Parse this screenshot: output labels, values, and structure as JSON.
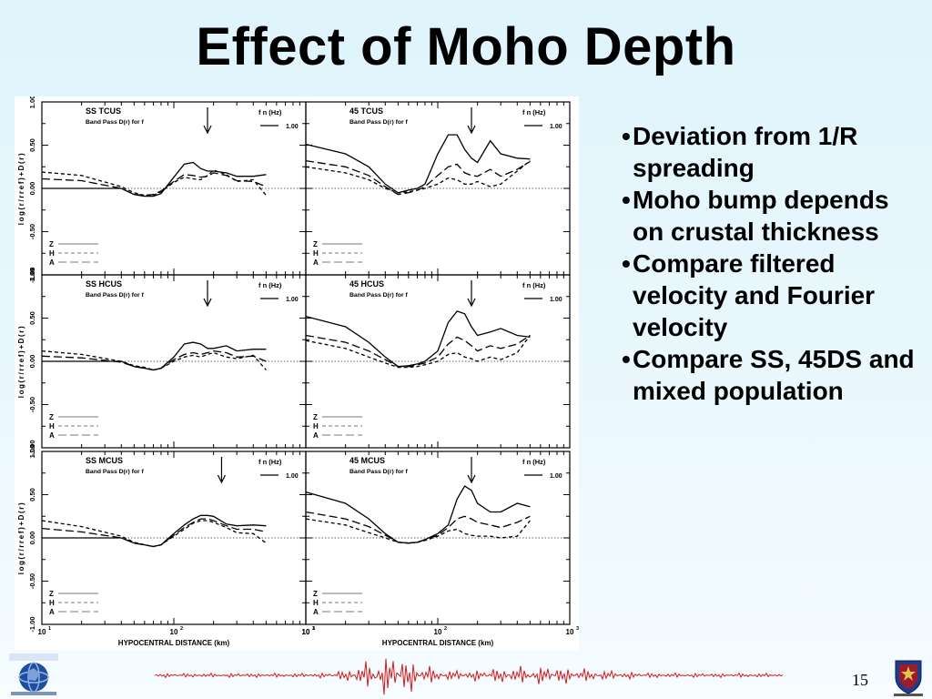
{
  "slide": {
    "title": "Effect of Moho Depth",
    "bullets": [
      "Deviation from 1/R spreading",
      "Moho bump depends on crustal thickness",
      "Compare filtered velocity and Fourier velocity",
      "Compare SS, 45DS and mixed population"
    ],
    "page_number": "15"
  },
  "logos": {
    "left": "earth-globe-logo",
    "right": "university-crest-logo"
  },
  "chart_data": [
    {
      "type": "line",
      "panel": "SS TCUS",
      "title": "SS TCUS",
      "subtitle": "Band Pass D(r) for f",
      "x_scale": "log",
      "xlim": [
        10,
        1000
      ],
      "ylim": [
        -1.0,
        1.0
      ],
      "ylabel": "log(r/rref)+D(r)",
      "xlabel": "",
      "legend_title": "f n (Hz)",
      "legend_entry": "1.00",
      "arrow_x": 180,
      "x": [
        10,
        20,
        40,
        50,
        60,
        70,
        80,
        100,
        120,
        140,
        160,
        180,
        200,
        250,
        300,
        400,
        500
      ],
      "series": [
        {
          "name": "Z",
          "style": "solid",
          "values": [
            null,
            null,
            0.0,
            -0.07,
            -0.09,
            -0.09,
            -0.06,
            0.13,
            0.28,
            0.3,
            0.23,
            0.2,
            0.2,
            0.18,
            0.14,
            0.14,
            0.16
          ]
        },
        {
          "name": "H",
          "style": "dashed",
          "values": [
            0.19,
            0.15,
            0.02,
            -0.05,
            -0.08,
            -0.08,
            -0.04,
            0.07,
            0.13,
            0.11,
            0.1,
            0.15,
            0.21,
            0.16,
            0.08,
            0.1,
            -0.08
          ]
        },
        {
          "name": "A",
          "style": "longdash",
          "values": [
            0.11,
            0.09,
            0.0,
            -0.07,
            -0.08,
            -0.07,
            -0.03,
            0.08,
            0.16,
            0.15,
            0.13,
            0.14,
            0.18,
            0.15,
            0.09,
            0.08,
            0.02
          ]
        }
      ],
      "legend": [
        "Z",
        "H",
        "A"
      ],
      "grid": false
    },
    {
      "type": "line",
      "panel": "45 TCUS",
      "title": "45 TCUS",
      "subtitle": "Band Pass D(r) for f",
      "x_scale": "log",
      "xlim": [
        10,
        1000
      ],
      "ylim": [
        -1.0,
        1.0
      ],
      "legend_title": "f n (Hz)",
      "legend_entry": "1.00",
      "arrow_x": 180,
      "x": [
        10,
        20,
        30,
        40,
        50,
        60,
        70,
        80,
        100,
        120,
        140,
        160,
        180,
        200,
        250,
        300,
        400,
        500
      ],
      "series": [
        {
          "name": "Z",
          "style": "solid",
          "values": [
            0.51,
            0.4,
            0.25,
            0.05,
            -0.05,
            -0.02,
            0.0,
            0.05,
            0.4,
            0.62,
            0.62,
            0.45,
            0.35,
            0.3,
            0.55,
            0.4,
            0.35,
            0.34
          ]
        },
        {
          "name": "H",
          "style": "dashed",
          "values": [
            0.25,
            0.18,
            0.1,
            0.0,
            -0.05,
            -0.04,
            -0.02,
            0.0,
            0.05,
            0.12,
            0.1,
            0.05,
            0.05,
            0.08,
            0.02,
            0.05,
            0.2,
            0.32
          ]
        },
        {
          "name": "A",
          "style": "longdash",
          "values": [
            0.32,
            0.25,
            0.15,
            0.02,
            -0.07,
            -0.05,
            -0.02,
            0.02,
            0.15,
            0.25,
            0.28,
            0.18,
            0.15,
            0.14,
            0.22,
            0.14,
            0.22,
            0.31
          ]
        }
      ],
      "legend": [
        "Z",
        "H",
        "A"
      ],
      "grid": false
    },
    {
      "type": "line",
      "panel": "SS HCUS",
      "title": "SS HCUS",
      "subtitle": "Band Pass D(r) for f",
      "x_scale": "log",
      "xlim": [
        10,
        1000
      ],
      "ylim": [
        -1.0,
        1.0
      ],
      "ylabel": "log(r/rref)+D(r)",
      "xlabel": "",
      "legend_title": "f n (Hz)",
      "legend_entry": "1.00",
      "arrow_x": 180,
      "x": [
        10,
        20,
        40,
        50,
        60,
        70,
        80,
        100,
        120,
        140,
        160,
        180,
        200,
        250,
        300,
        400,
        500
      ],
      "series": [
        {
          "name": "Z",
          "style": "solid",
          "values": [
            null,
            null,
            0.0,
            -0.06,
            -0.08,
            -0.1,
            -0.08,
            0.05,
            0.2,
            0.22,
            0.2,
            0.15,
            0.15,
            0.18,
            0.12,
            0.14,
            0.14
          ]
        },
        {
          "name": "H",
          "style": "dashed",
          "values": [
            0.12,
            0.08,
            0.0,
            -0.05,
            -0.07,
            -0.1,
            -0.08,
            0.0,
            0.05,
            0.07,
            0.05,
            0.08,
            0.1,
            0.05,
            0.03,
            0.07,
            -0.1
          ]
        },
        {
          "name": "A",
          "style": "longdash",
          "values": [
            0.06,
            0.04,
            -0.01,
            -0.06,
            -0.08,
            -0.1,
            -0.08,
            0.02,
            0.08,
            0.1,
            0.08,
            0.1,
            0.12,
            0.1,
            0.05,
            0.06,
            0.0
          ]
        }
      ],
      "legend": [
        "Z",
        "H",
        "A"
      ],
      "grid": false
    },
    {
      "type": "line",
      "panel": "45 HCUS",
      "title": "45 HCUS",
      "subtitle": "Band Pass D(r) for f",
      "x_scale": "log",
      "xlim": [
        10,
        1000
      ],
      "ylim": [
        -1.0,
        1.0
      ],
      "legend_title": "f n (Hz)",
      "legend_entry": "1.00",
      "arrow_x": 180,
      "x": [
        10,
        20,
        30,
        40,
        50,
        60,
        70,
        80,
        100,
        120,
        140,
        160,
        180,
        200,
        250,
        300,
        400,
        500
      ],
      "series": [
        {
          "name": "Z",
          "style": "solid",
          "values": [
            0.52,
            0.4,
            0.22,
            0.05,
            -0.06,
            -0.05,
            -0.03,
            0.0,
            0.12,
            0.45,
            0.58,
            0.55,
            0.4,
            0.3,
            0.34,
            0.38,
            0.3,
            0.28
          ]
        },
        {
          "name": "H",
          "style": "dashed",
          "values": [
            0.24,
            0.15,
            0.05,
            -0.02,
            -0.07,
            -0.07,
            -0.06,
            -0.04,
            0.0,
            0.08,
            0.1,
            0.05,
            0.03,
            0.0,
            0.05,
            0.02,
            0.1,
            0.3
          ]
        },
        {
          "name": "A",
          "style": "longdash",
          "values": [
            0.3,
            0.22,
            0.12,
            0.02,
            -0.06,
            -0.06,
            -0.04,
            -0.02,
            0.05,
            0.2,
            0.28,
            0.24,
            0.18,
            0.12,
            0.18,
            0.15,
            0.2,
            0.3
          ]
        }
      ],
      "legend": [
        "Z",
        "H",
        "A"
      ],
      "grid": false
    },
    {
      "type": "line",
      "panel": "SS MCUS",
      "title": "SS MCUS",
      "subtitle": "Band Pass D(r) for f",
      "x_scale": "log",
      "xlim": [
        10,
        1000
      ],
      "ylim": [
        -1.0,
        1.0
      ],
      "ylabel": "log(r/rref)+D(r)",
      "xlabel": "HYPOCENTRAL DISTANCE (km)",
      "legend_title": "f n (Hz)",
      "legend_entry": "1.00",
      "arrow_x": 230,
      "x": [
        10,
        20,
        40,
        50,
        60,
        70,
        80,
        100,
        120,
        140,
        160,
        180,
        200,
        250,
        300,
        400,
        500
      ],
      "series": [
        {
          "name": "Z",
          "style": "solid",
          "values": [
            null,
            null,
            0.0,
            -0.06,
            -0.08,
            -0.1,
            -0.08,
            0.05,
            0.15,
            0.22,
            0.26,
            0.26,
            0.25,
            0.16,
            0.14,
            0.15,
            0.14
          ]
        },
        {
          "name": "H",
          "style": "dashed",
          "values": [
            0.2,
            0.13,
            0.02,
            -0.05,
            -0.08,
            -0.1,
            -0.08,
            0.02,
            0.1,
            0.17,
            0.2,
            0.2,
            0.18,
            0.12,
            0.06,
            0.05,
            -0.06
          ]
        },
        {
          "name": "A",
          "style": "longdash",
          "values": [
            0.11,
            0.07,
            0.0,
            -0.06,
            -0.08,
            -0.1,
            -0.08,
            0.03,
            0.12,
            0.18,
            0.22,
            0.22,
            0.2,
            0.14,
            0.1,
            0.1,
            0.07
          ]
        }
      ],
      "legend": [
        "Z",
        "H",
        "A"
      ],
      "grid": false
    },
    {
      "type": "line",
      "panel": "45 MCUS",
      "title": "45 MCUS",
      "subtitle": "Band Pass D(r) for f",
      "x_scale": "log",
      "xlim": [
        10,
        1000
      ],
      "ylim": [
        -1.0,
        1.0
      ],
      "xlabel": "HYPOCENTRAL DISTANCE (km)",
      "legend_title": "f n (Hz)",
      "legend_entry": "1.00",
      "arrow_x": 180,
      "x": [
        10,
        20,
        30,
        40,
        50,
        60,
        70,
        80,
        100,
        120,
        140,
        160,
        180,
        200,
        250,
        300,
        400,
        500
      ],
      "series": [
        {
          "name": "Z",
          "style": "solid",
          "values": [
            0.53,
            0.4,
            0.22,
            0.05,
            -0.05,
            -0.06,
            -0.05,
            -0.02,
            0.05,
            0.15,
            0.45,
            0.6,
            0.55,
            0.4,
            0.3,
            0.3,
            0.4,
            0.36
          ]
        },
        {
          "name": "H",
          "style": "dashed",
          "values": [
            0.22,
            0.15,
            0.06,
            0.0,
            -0.05,
            -0.06,
            -0.05,
            -0.03,
            0.02,
            0.08,
            0.1,
            0.05,
            0.03,
            0.02,
            0.02,
            0.0,
            0.02,
            0.2
          ]
        },
        {
          "name": "A",
          "style": "longdash",
          "values": [
            0.3,
            0.22,
            0.13,
            0.03,
            -0.05,
            -0.06,
            -0.05,
            -0.02,
            0.03,
            0.12,
            0.22,
            0.25,
            0.22,
            0.18,
            0.15,
            0.12,
            0.18,
            0.25
          ]
        }
      ],
      "legend": [
        "Z",
        "H",
        "A"
      ],
      "grid": false
    }
  ]
}
